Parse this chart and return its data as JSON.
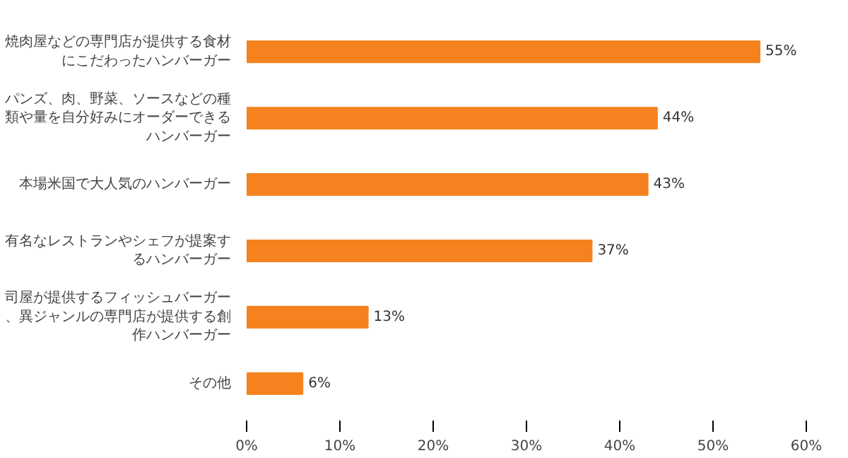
{
  "chart_data": {
    "type": "bar",
    "orientation": "horizontal",
    "categories": [
      "焼肉屋などの専門店が提供する食材にこだわったハンバーガー",
      "パンズ、肉、野菜、ソースなどの種類や量を自分好みにオーダーできるハンバーガー",
      "本場米国で大人気のハンバーガー",
      "有名なレストランやシェフが提案するハンバーガー",
      "司屋が提供するフィッシュバーガー、異ジャンルの専門店が提供する創作ハンバーガー",
      "その他"
    ],
    "values": [
      55,
      44,
      43,
      37,
      13,
      6
    ],
    "value_labels": [
      "55%",
      "44%",
      "43%",
      "37%",
      "13%",
      "6%"
    ],
    "color": "#f5821f",
    "xlim": [
      0,
      60
    ],
    "xticks": [
      {
        "value": 0,
        "label": "0%"
      },
      {
        "value": 10,
        "label": "10%"
      },
      {
        "value": 20,
        "label": "20%"
      },
      {
        "value": 30,
        "label": "30%"
      },
      {
        "value": 40,
        "label": "40%"
      },
      {
        "value": 50,
        "label": "50%"
      },
      {
        "value": 60,
        "label": "60%"
      }
    ],
    "grid": false
  }
}
